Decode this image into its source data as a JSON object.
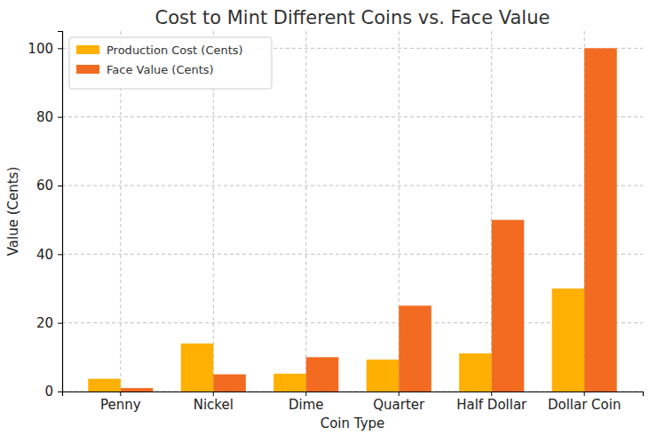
{
  "chart_data": {
    "type": "bar",
    "title": "Cost to Mint Different Coins vs. Face Value",
    "x_label": "Coin Type",
    "y_label": "Value (Cents)",
    "categories": [
      "Penny",
      "Nickel",
      "Dime",
      "Quarter",
      "Half Dollar",
      "Dollar Coin"
    ],
    "series": [
      {
        "name": "Production Cost (Cents)",
        "color": "#ffb000",
        "values": [
          3.7,
          14,
          5.2,
          9.3,
          11.1,
          30
        ]
      },
      {
        "name": "Face Value (Cents)",
        "color": "#f26b21",
        "values": [
          1,
          5,
          10,
          25,
          50,
          100
        ]
      }
    ],
    "ylim": [
      0,
      105
    ],
    "yticks": [
      0,
      20,
      40,
      60,
      80,
      100
    ],
    "grid": true,
    "legend": "upper left"
  }
}
